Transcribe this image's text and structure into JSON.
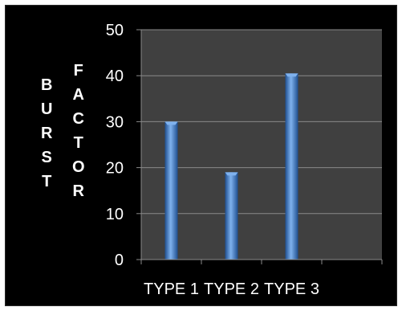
{
  "chart_data": {
    "type": "bar",
    "categories": [
      "TYPE 1",
      "TYPE 2",
      "TYPE 3"
    ],
    "values": [
      30,
      19,
      40.5
    ],
    "ylabel_lines": [
      "BURST",
      "FACTOR"
    ],
    "xlabel": "",
    "title": "",
    "ylim": [
      0,
      50
    ],
    "yticks": [
      0,
      10,
      20,
      30,
      40,
      50
    ],
    "grid": true,
    "legend": "none",
    "colors": {
      "background": "#000000",
      "plot_area": "#404040",
      "gridline": "#8a8a8a",
      "bar": "#3f7fd0",
      "bar_dark": "#1f4f8f",
      "bar_light": "#7fb2ee",
      "text": "#ffffff"
    }
  }
}
